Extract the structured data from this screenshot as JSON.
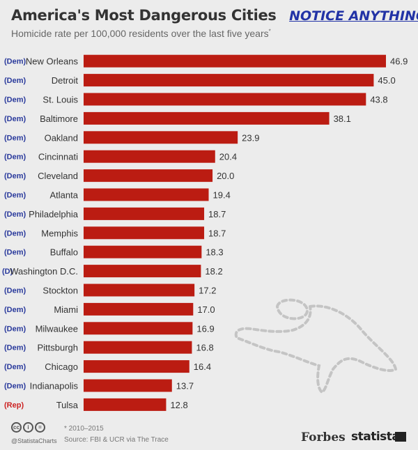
{
  "header": {
    "title": "America's Most Dangerous Cities",
    "notice": "NOTICE ANYTHING?",
    "subtitle": "Homicide rate per 100,000 residents over the last five years",
    "subtitle_mark": "*"
  },
  "colors": {
    "bar": "#bb1c12",
    "dem": "#2a3a9c",
    "rep": "#cc2222",
    "text": "#333333"
  },
  "chart_data": {
    "type": "bar",
    "orientation": "horizontal",
    "categories": [
      "New Orleans",
      "Detroit",
      "St. Louis",
      "Baltimore",
      "Oakland",
      "Cincinnati",
      "Cleveland",
      "Atlanta",
      "Philadelphia",
      "Memphis",
      "Buffalo",
      "Washington D.C.",
      "Stockton",
      "Miami",
      "Milwaukee",
      "Pittsburgh",
      "Chicago",
      "Indianapolis",
      "Tulsa"
    ],
    "parties": [
      "(Dem)",
      "(Dem)",
      "(Dem)",
      "(Dem)",
      "(Dem)",
      "(Dem)",
      "(Dem)",
      "(Dem)",
      "(Dem)",
      "(Dem)",
      "(Dem)",
      "(D)",
      "(Dem)",
      "(Dem)",
      "(Dem)",
      "(Dem)",
      "(Dem)",
      "(Dem)",
      "(Rep)"
    ],
    "values": [
      46.9,
      45.0,
      43.8,
      38.1,
      23.9,
      20.4,
      20.0,
      19.4,
      18.7,
      18.7,
      18.3,
      18.2,
      17.2,
      17.0,
      16.9,
      16.8,
      16.4,
      13.7,
      12.8
    ],
    "value_labels": [
      "46.9",
      "45.0",
      "43.8",
      "38.1",
      "23.9",
      "20.4",
      "20.0",
      "19.4",
      "18.7",
      "18.7",
      "18.3",
      "18.2",
      "17.2",
      "17.0",
      "16.9",
      "16.8",
      "16.4",
      "13.7",
      "12.8"
    ],
    "title": "America's Most Dangerous Cities",
    "xlabel": "",
    "ylabel": "",
    "grid": false
  },
  "footer": {
    "handle": "@StatistaCharts",
    "note": "* 2010–2015",
    "source": "Source: FBI & UCR via The Trace",
    "brand_forbes": "Forbes",
    "brand_statista": "statista"
  }
}
